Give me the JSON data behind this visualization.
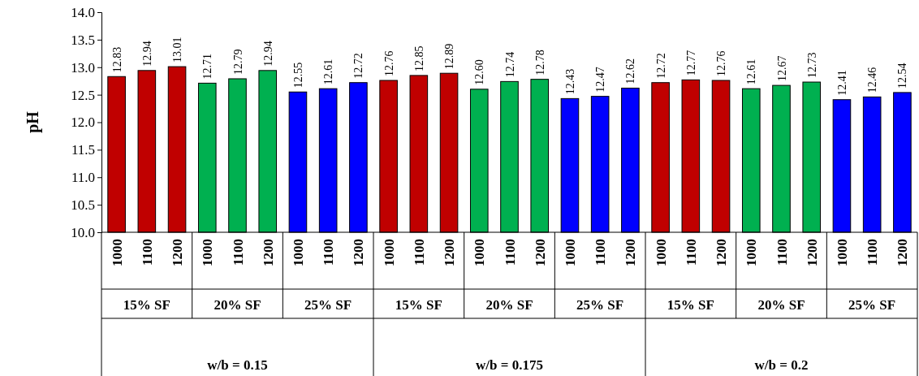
{
  "chart_data": {
    "type": "bar",
    "ylabel": "pH",
    "categories": [
      "1000",
      "1100",
      "1200",
      "1000",
      "1100",
      "1200",
      "1000",
      "1100",
      "1200",
      "1000",
      "1100",
      "1200",
      "1000",
      "1100",
      "1200",
      "1000",
      "1100",
      "1200",
      "1000",
      "1100",
      "1200",
      "1000",
      "1100",
      "1200",
      "1000",
      "1100",
      "1200"
    ],
    "values": [
      12.83,
      12.94,
      13.01,
      12.71,
      12.79,
      12.94,
      12.55,
      12.61,
      12.72,
      12.76,
      12.85,
      12.89,
      12.6,
      12.74,
      12.78,
      12.43,
      12.47,
      12.62,
      12.72,
      12.77,
      12.76,
      12.61,
      12.67,
      12.73,
      12.41,
      12.46,
      12.54
    ],
    "colors": [
      "#c00000",
      "#c00000",
      "#c00000",
      "#00b050",
      "#00b050",
      "#00b050",
      "#0000ff",
      "#0000ff",
      "#0000ff",
      "#c00000",
      "#c00000",
      "#c00000",
      "#00b050",
      "#00b050",
      "#00b050",
      "#0000ff",
      "#0000ff",
      "#0000ff",
      "#c00000",
      "#c00000",
      "#c00000",
      "#00b050",
      "#00b050",
      "#00b050",
      "#0000ff",
      "#0000ff",
      "#0000ff"
    ],
    "ylim": [
      10,
      14
    ],
    "yticks": [
      {
        "value": 10,
        "label": "10.0"
      },
      {
        "value": 10.5,
        "label": "10.5"
      },
      {
        "value": 11,
        "label": "11.0"
      },
      {
        "value": 11.5,
        "label": "11.5"
      },
      {
        "value": 12,
        "label": "12.0"
      },
      {
        "value": 12.5,
        "label": "12.5"
      },
      {
        "value": 13,
        "label": "13.0"
      },
      {
        "value": 13.5,
        "label": "13.5"
      },
      {
        "value": 14,
        "label": "14.0"
      }
    ],
    "value_labels": [
      "12.83",
      "12.94",
      "13.01",
      "12.71",
      "12.79",
      "12.94",
      "12.55",
      "12.61",
      "12.72",
      "12.76",
      "12.85",
      "12.89",
      "12.60",
      "12.74",
      "12.78",
      "12.43",
      "12.47",
      "12.62",
      "12.72",
      "12.77",
      "12.76",
      "12.61",
      "12.67",
      "12.73",
      "12.41",
      "12.46",
      "12.54"
    ],
    "annotations": [
      "15% SF",
      "20% SF",
      "25% SF",
      "15% SF",
      "20% SF",
      "25% SF",
      "15% SF",
      "20% SF",
      "25% SF",
      "w/b = 0.15",
      "w/b = 0.175",
      "w/b = 0.2"
    ]
  }
}
